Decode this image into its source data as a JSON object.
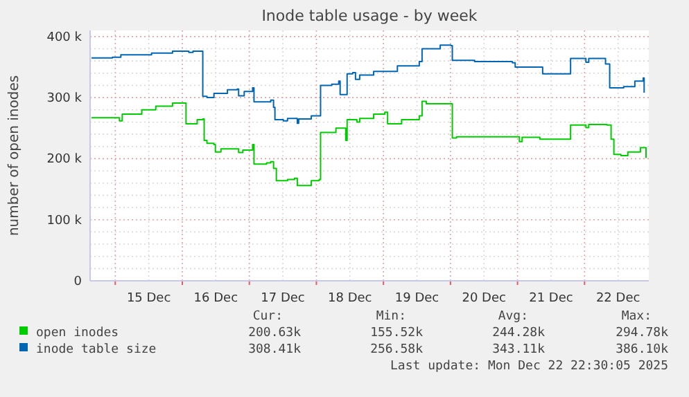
{
  "chart_data": {
    "type": "step",
    "title": "Inode table usage - by week",
    "ylabel": "number of open inodes",
    "xlim": [
      "2025-12-14T15:00",
      "2025-12-22T23:00"
    ],
    "ylim": [
      0,
      410000
    ],
    "xticks": [
      {
        "value": "2025-12-15T00:00",
        "label": null
      },
      {
        "value": "2025-12-15T12:00",
        "label": "15 Dec"
      },
      {
        "value": "2025-12-16T00:00",
        "label": null
      },
      {
        "value": "2025-12-16T12:00",
        "label": "16 Dec"
      },
      {
        "value": "2025-12-17T00:00",
        "label": null
      },
      {
        "value": "2025-12-17T12:00",
        "label": "17 Dec"
      },
      {
        "value": "2025-12-18T00:00",
        "label": null
      },
      {
        "value": "2025-12-18T12:00",
        "label": "18 Dec"
      },
      {
        "value": "2025-12-19T00:00",
        "label": null
      },
      {
        "value": "2025-12-19T12:00",
        "label": "19 Dec"
      },
      {
        "value": "2025-12-20T00:00",
        "label": null
      },
      {
        "value": "2025-12-20T12:00",
        "label": "20 Dec"
      },
      {
        "value": "2025-12-21T00:00",
        "label": null
      },
      {
        "value": "2025-12-21T12:00",
        "label": "21 Dec"
      },
      {
        "value": "2025-12-22T00:00",
        "label": null
      },
      {
        "value": "2025-12-22T12:00",
        "label": "22 Dec"
      }
    ],
    "yticks": [
      0,
      {
        "value": 20000,
        "label": null
      },
      {
        "value": 40000,
        "label": null
      },
      {
        "value": 60000,
        "label": null
      },
      {
        "value": 80000,
        "label": null
      },
      {
        "value": 100000,
        "label": "100 k"
      },
      {
        "value": 120000,
        "label": null
      },
      {
        "value": 140000,
        "label": null
      },
      {
        "value": 160000,
        "label": null
      },
      {
        "value": 180000,
        "label": null
      },
      {
        "value": 200000,
        "label": "200 k"
      },
      {
        "value": 220000,
        "label": null
      },
      {
        "value": 240000,
        "label": null
      },
      {
        "value": 260000,
        "label": null
      },
      {
        "value": 280000,
        "label": null
      },
      {
        "value": 300000,
        "label": "300 k"
      },
      {
        "value": 320000,
        "label": null
      },
      {
        "value": 340000,
        "label": null
      },
      {
        "value": 360000,
        "label": null
      },
      {
        "value": 380000,
        "label": null
      },
      {
        "value": 400000,
        "label": "400 k"
      }
    ],
    "grid": true,
    "legend": "bottom",
    "series": [
      {
        "name": "open inodes",
        "color": "#00cc00",
        "x": [
          "2025-12-14T15:30",
          "2025-12-14T23:30",
          "2025-12-15T01:30",
          "2025-12-15T02:30",
          "2025-12-15T09:00",
          "2025-12-15T09:30",
          "2025-12-15T14:30",
          "2025-12-15T20:30",
          "2025-12-16T00:20",
          "2025-12-16T01:20",
          "2025-12-16T05:20",
          "2025-12-16T07:20",
          "2025-12-16T07:50",
          "2025-12-16T08:50",
          "2025-12-16T11:20",
          "2025-12-16T11:50",
          "2025-12-16T13:50",
          "2025-12-16T19:40",
          "2025-12-16T20:10",
          "2025-12-16T21:40",
          "2025-12-17T01:10",
          "2025-12-17T01:40",
          "2025-12-17T06:10",
          "2025-12-17T07:40",
          "2025-12-17T08:40",
          "2025-12-17T09:40",
          "2025-12-17T13:40",
          "2025-12-17T16:10",
          "2025-12-17T17:10",
          "2025-12-17T22:10",
          "2025-12-18T01:00",
          "2025-12-18T01:30",
          "2025-12-18T07:00",
          "2025-12-18T08:30",
          "2025-12-18T10:30",
          "2025-12-18T11:00",
          "2025-12-18T14:30",
          "2025-12-18T15:30",
          "2025-12-18T20:30",
          "2025-12-19T00:30",
          "2025-12-19T01:30",
          "2025-12-19T06:30",
          "2025-12-19T12:50",
          "2025-12-19T13:50",
          "2025-12-19T15:20",
          "2025-12-19T23:50",
          "2025-12-20T00:40",
          "2025-12-20T02:10",
          "2025-12-20T23:40",
          "2025-12-21T00:40",
          "2025-12-21T01:40",
          "2025-12-21T08:00",
          "2025-12-21T18:00",
          "2025-12-21T19:00",
          "2025-12-22T00:30",
          "2025-12-22T01:30",
          "2025-12-22T08:00",
          "2025-12-22T09:30",
          "2025-12-22T10:30",
          "2025-12-22T13:00",
          "2025-12-22T15:30",
          "2025-12-22T20:00",
          "2025-12-22T21:00",
          "2025-12-22T22:00"
        ],
        "values": [
          267000,
          267000,
          262000,
          273000,
          273000,
          280000,
          286000,
          291000,
          291000,
          257000,
          264000,
          265000,
          230000,
          225000,
          223000,
          211000,
          216000,
          216000,
          210000,
          214000,
          223000,
          191000,
          193000,
          195000,
          184000,
          164000,
          166000,
          168000,
          156000,
          164000,
          166000,
          243000,
          250000,
          250000,
          230000,
          264000,
          260000,
          266000,
          273000,
          276000,
          257000,
          264000,
          270000,
          294000,
          290000,
          290000,
          234000,
          236000,
          236000,
          228000,
          235000,
          232000,
          232000,
          255000,
          251000,
          256000,
          255000,
          232000,
          207000,
          205000,
          211000,
          218000,
          218000,
          201000
        ]
      },
      {
        "name": "inode table size",
        "color": "#0066b3",
        "x": [
          "2025-12-14T15:30",
          "2025-12-14T21:00",
          "2025-12-14T23:00",
          "2025-12-15T02:00",
          "2025-12-15T08:00",
          "2025-12-15T13:00",
          "2025-12-15T20:30",
          "2025-12-16T02:20",
          "2025-12-16T03:50",
          "2025-12-16T06:50",
          "2025-12-16T07:20",
          "2025-12-16T08:50",
          "2025-12-16T11:20",
          "2025-12-16T16:10",
          "2025-12-16T19:40",
          "2025-12-16T20:10",
          "2025-12-16T22:10",
          "2025-12-17T01:10",
          "2025-12-17T01:40",
          "2025-12-17T04:40",
          "2025-12-17T07:40",
          "2025-12-17T08:40",
          "2025-12-17T09:10",
          "2025-12-17T12:10",
          "2025-12-17T13:40",
          "2025-12-17T17:10",
          "2025-12-17T17:40",
          "2025-12-17T22:10",
          "2025-12-18T01:00",
          "2025-12-18T01:30",
          "2025-12-18T05:30",
          "2025-12-18T08:00",
          "2025-12-18T08:30",
          "2025-12-18T10:30",
          "2025-12-18T11:00",
          "2025-12-18T13:00",
          "2025-12-18T14:00",
          "2025-12-18T15:30",
          "2025-12-18T20:30",
          "2025-12-19T05:00",
          "2025-12-19T12:50",
          "2025-12-19T13:50",
          "2025-12-19T20:20",
          "2025-12-20T00:10",
          "2025-12-20T00:40",
          "2025-12-20T08:40",
          "2025-12-20T22:10",
          "2025-12-20T23:10",
          "2025-12-21T08:00",
          "2025-12-21T09:00",
          "2025-12-21T17:30",
          "2025-12-21T19:00",
          "2025-12-22T00:00",
          "2025-12-22T00:30",
          "2025-12-22T01:30",
          "2025-12-22T07:30",
          "2025-12-22T09:00",
          "2025-12-22T14:00",
          "2025-12-22T18:00",
          "2025-12-22T21:00",
          "2025-12-22T21:20"
        ],
        "values": [
          365000,
          365000,
          366000,
          370000,
          370000,
          373000,
          376000,
          374000,
          376000,
          376000,
          302000,
          300000,
          307000,
          313000,
          314000,
          303000,
          310000,
          316000,
          293000,
          293000,
          296000,
          284000,
          264000,
          262000,
          266000,
          258000,
          265000,
          270000,
          270000,
          320000,
          322000,
          327000,
          305000,
          305000,
          339000,
          341000,
          330000,
          337000,
          343000,
          352000,
          359000,
          380000,
          386000,
          385000,
          361000,
          359000,
          357000,
          350000,
          350000,
          339000,
          339000,
          364000,
          364000,
          358000,
          364000,
          355000,
          316000,
          318000,
          327000,
          332000,
          308000
        ]
      }
    ],
    "annotations": [
      "Cur:",
      "Min:",
      "Avg:",
      "Max:",
      "200.63k",
      "155.52k",
      "244.28k",
      "294.78k",
      "308.41k",
      "256.58k",
      "343.11k",
      "386.10k",
      "Last update: Mon Dec 22 22:30:05 2025"
    ]
  }
}
